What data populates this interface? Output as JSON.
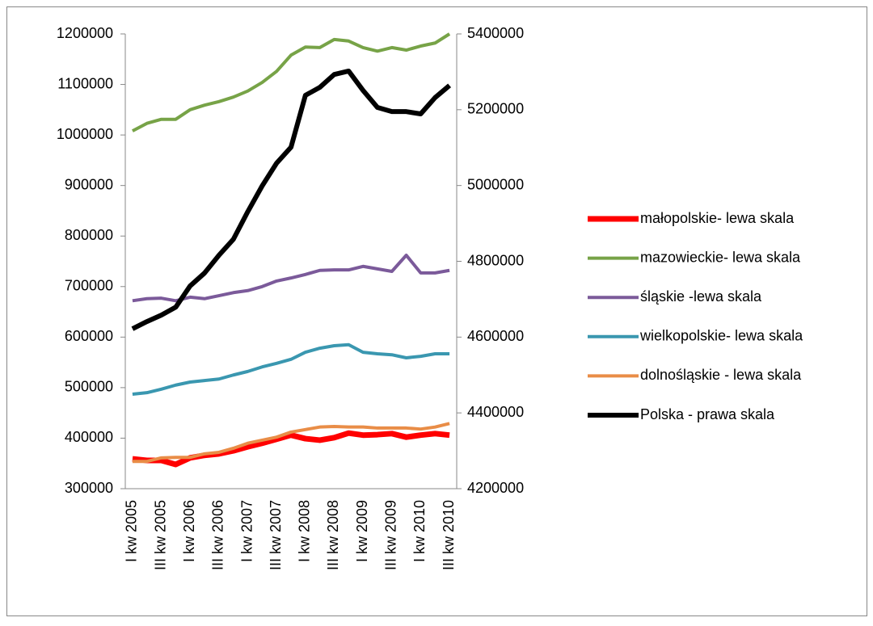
{
  "chart_data": {
    "type": "line",
    "categories": [
      "I kw 2005",
      null,
      "III kw 2005",
      null,
      "I kw 2006",
      null,
      "III kw 2006",
      null,
      "I kw 2007",
      null,
      "III kw 2007",
      null,
      "I kw 2008",
      null,
      "III kw 2008",
      null,
      "I kw 2009",
      null,
      "III kw 2009",
      null,
      "I kw 2010",
      null,
      "III kw 2010"
    ],
    "ylim": [
      300000,
      1200000
    ],
    "yticks": [
      300000,
      400000,
      500000,
      600000,
      700000,
      800000,
      900000,
      1000000,
      1100000,
      1200000
    ],
    "y2lim": [
      4200000,
      5400000
    ],
    "y2ticks": [
      4200000,
      4400000,
      4600000,
      4800000,
      5000000,
      5200000,
      5400000
    ],
    "grid": false,
    "legend": "right",
    "series": [
      {
        "name": "małopolskie- lewa skala",
        "color": "#ff0000",
        "values": [
          359000,
          356000,
          356000,
          348000,
          361000,
          366000,
          369000,
          375000,
          383000,
          390000,
          398000,
          406000,
          399000,
          396000,
          401000,
          410000,
          406000,
          407000,
          409000,
          402000,
          406000,
          409000,
          406000
        ]
      },
      {
        "name": "mazowieckie- lewa skala",
        "color": "#77a347",
        "values": [
          1008000,
          1023000,
          1031000,
          1031000,
          1050000,
          1059000,
          1066000,
          1075000,
          1087000,
          1104000,
          1126000,
          1158000,
          1174000,
          1173000,
          1189000,
          1186000,
          1173000,
          1166000,
          1173000,
          1168000,
          1176000,
          1182000,
          1200000
        ]
      },
      {
        "name": "śląskie -lewa skala",
        "color": "#7b5a9a",
        "values": [
          672000,
          676000,
          677000,
          672000,
          679000,
          676000,
          682000,
          688000,
          692000,
          700000,
          711000,
          717000,
          724000,
          732000,
          733000,
          733000,
          740000,
          735000,
          730000,
          762000,
          727000,
          727000,
          732000
        ]
      },
      {
        "name": "wielkopolskie- lewa skala",
        "color": "#3a97b0",
        "values": [
          487000,
          490000,
          497000,
          505000,
          511000,
          514000,
          517000,
          525000,
          532000,
          541000,
          548000,
          556000,
          570000,
          578000,
          583000,
          585000,
          570000,
          567000,
          565000,
          559000,
          562000,
          567000,
          567000
        ]
      },
      {
        "name": "dolnośląskie - lewa skala",
        "color": "#e98d47",
        "values": [
          354000,
          354000,
          361000,
          362000,
          362000,
          369000,
          372000,
          380000,
          390000,
          396000,
          402000,
          412000,
          417000,
          422000,
          423000,
          422000,
          422000,
          420000,
          420000,
          420000,
          418000,
          422000,
          429000
        ]
      },
      {
        "name": "Polska - prawa skala",
        "color": "#000000",
        "axis": "y2",
        "values": [
          4622000,
          4641000,
          4658000,
          4679000,
          4735000,
          4769000,
          4816000,
          4858000,
          4931000,
          4999000,
          5059000,
          5101000,
          5238000,
          5259000,
          5293000,
          5302000,
          5251000,
          5206000,
          5195000,
          5195000,
          5189000,
          5232000,
          5264000
        ]
      }
    ]
  }
}
